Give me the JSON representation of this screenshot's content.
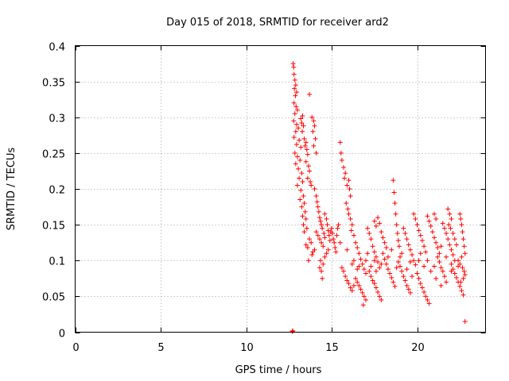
{
  "chart_data": {
    "type": "scatter",
    "title": "Day 015 of 2018, SRMTID for receiver ard2",
    "xlabel": "GPS time / hours",
    "ylabel": "SRMTID / TECUs",
    "xlim": [
      0,
      24
    ],
    "ylim": [
      0,
      0.4
    ],
    "xticks": [
      0,
      5,
      10,
      15,
      20
    ],
    "yticks": [
      0,
      0.05,
      0.1,
      0.15,
      0.2,
      0.25,
      0.3,
      0.35,
      0.4
    ],
    "xtick_labels": [
      "0",
      "5",
      "10",
      "15",
      "20"
    ],
    "ytick_labels": [
      "0",
      "0.05",
      "0.1",
      "0.15",
      "0.2",
      "0.25",
      "0.3",
      "0.35",
      "0.4"
    ],
    "grid": true,
    "marker": "+",
    "color": "#ff0000",
    "series": [
      {
        "name": "SRMTID",
        "points": [
          [
            12.7,
            0.001
          ],
          [
            12.73,
            0.002
          ],
          [
            12.75,
            0.375
          ],
          [
            12.78,
            0.37
          ],
          [
            12.8,
            0.36
          ],
          [
            12.85,
            0.352
          ],
          [
            12.9,
            0.345
          ],
          [
            12.82,
            0.34
          ],
          [
            12.95,
            0.335
          ],
          [
            12.88,
            0.33
          ],
          [
            12.8,
            0.32
          ],
          [
            12.92,
            0.315
          ],
          [
            13.0,
            0.31
          ],
          [
            12.85,
            0.305
          ],
          [
            12.78,
            0.295
          ],
          [
            12.95,
            0.29
          ],
          [
            13.05,
            0.285
          ],
          [
            12.9,
            0.28
          ],
          [
            12.8,
            0.272
          ],
          [
            13.1,
            0.268
          ],
          [
            12.95,
            0.262
          ],
          [
            13.2,
            0.258
          ],
          [
            12.85,
            0.25
          ],
          [
            13.0,
            0.245
          ],
          [
            13.15,
            0.24
          ],
          [
            12.9,
            0.235
          ],
          [
            13.05,
            0.228
          ],
          [
            13.25,
            0.222
          ],
          [
            13.1,
            0.215
          ],
          [
            13.3,
            0.21
          ],
          [
            13.0,
            0.205
          ],
          [
            13.2,
            0.198
          ],
          [
            13.35,
            0.19
          ],
          [
            13.15,
            0.185
          ],
          [
            13.4,
            0.18
          ],
          [
            13.25,
            0.175
          ],
          [
            13.45,
            0.168
          ],
          [
            13.3,
            0.162
          ],
          [
            13.5,
            0.158
          ],
          [
            13.35,
            0.15
          ],
          [
            13.55,
            0.145
          ],
          [
            13.4,
            0.14
          ],
          [
            13.2,
            0.298
          ],
          [
            13.25,
            0.292
          ],
          [
            13.3,
            0.302
          ],
          [
            13.35,
            0.288
          ],
          [
            13.28,
            0.28
          ],
          [
            13.4,
            0.27
          ],
          [
            13.45,
            0.26
          ],
          [
            13.5,
            0.265
          ],
          [
            13.55,
            0.255
          ],
          [
            13.6,
            0.248
          ],
          [
            13.5,
            0.238
          ],
          [
            13.65,
            0.232
          ],
          [
            13.7,
            0.225
          ],
          [
            13.6,
            0.215
          ],
          [
            13.75,
            0.21
          ],
          [
            13.8,
            0.205
          ],
          [
            13.7,
            0.332
          ],
          [
            13.85,
            0.3
          ],
          [
            13.95,
            0.295
          ],
          [
            14.0,
            0.288
          ],
          [
            13.9,
            0.28
          ],
          [
            14.05,
            0.27
          ],
          [
            13.95,
            0.26
          ],
          [
            14.1,
            0.25
          ],
          [
            13.5,
            0.122
          ],
          [
            13.6,
            0.118
          ],
          [
            13.7,
            0.13
          ],
          [
            13.8,
            0.125
          ],
          [
            13.9,
            0.112
          ],
          [
            13.65,
            0.1
          ],
          [
            13.85,
            0.108
          ],
          [
            14.0,
            0.115
          ],
          [
            14.0,
            0.2
          ],
          [
            14.1,
            0.19
          ],
          [
            14.15,
            0.182
          ],
          [
            14.2,
            0.175
          ],
          [
            14.25,
            0.168
          ],
          [
            14.3,
            0.16
          ],
          [
            14.35,
            0.155
          ],
          [
            14.4,
            0.15
          ],
          [
            14.1,
            0.14
          ],
          [
            14.2,
            0.135
          ],
          [
            14.3,
            0.13
          ],
          [
            14.4,
            0.125
          ],
          [
            14.5,
            0.12
          ],
          [
            14.45,
            0.145
          ],
          [
            14.55,
            0.138
          ],
          [
            14.6,
            0.132
          ],
          [
            14.3,
            0.09
          ],
          [
            14.4,
            0.085
          ],
          [
            14.45,
            0.075
          ],
          [
            14.5,
            0.095
          ],
          [
            14.35,
            0.1
          ],
          [
            14.6,
            0.105
          ],
          [
            14.7,
            0.11
          ],
          [
            14.8,
            0.115
          ],
          [
            14.6,
            0.165
          ],
          [
            14.7,
            0.158
          ],
          [
            14.75,
            0.15
          ],
          [
            14.8,
            0.142
          ],
          [
            14.85,
            0.135
          ],
          [
            14.9,
            0.128
          ],
          [
            14.95,
            0.14
          ],
          [
            15.0,
            0.145
          ],
          [
            15.05,
            0.138
          ],
          [
            15.1,
            0.13
          ],
          [
            15.15,
            0.125
          ],
          [
            15.2,
            0.118
          ],
          [
            15.25,
            0.112
          ],
          [
            15.3,
            0.135
          ],
          [
            15.35,
            0.145
          ],
          [
            15.4,
            0.15
          ],
          [
            15.5,
            0.265
          ],
          [
            15.55,
            0.25
          ],
          [
            15.6,
            0.24
          ],
          [
            15.7,
            0.23
          ],
          [
            15.8,
            0.222
          ],
          [
            15.75,
            0.215
          ],
          [
            15.9,
            0.205
          ],
          [
            16.0,
            0.212
          ],
          [
            16.05,
            0.2
          ],
          [
            16.1,
            0.19
          ],
          [
            15.85,
            0.18
          ],
          [
            15.95,
            0.172
          ],
          [
            16.0,
            0.165
          ],
          [
            16.1,
            0.158
          ],
          [
            16.2,
            0.15
          ],
          [
            16.15,
            0.142
          ],
          [
            15.6,
            0.09
          ],
          [
            15.7,
            0.085
          ],
          [
            15.8,
            0.078
          ],
          [
            15.9,
            0.072
          ],
          [
            16.0,
            0.068
          ],
          [
            16.1,
            0.062
          ],
          [
            16.2,
            0.058
          ],
          [
            16.3,
            0.065
          ],
          [
            16.3,
            0.135
          ],
          [
            16.4,
            0.125
          ],
          [
            16.5,
            0.118
          ],
          [
            16.6,
            0.11
          ],
          [
            16.7,
            0.102
          ],
          [
            16.8,
            0.095
          ],
          [
            16.9,
            0.088
          ],
          [
            17.0,
            0.082
          ],
          [
            16.4,
            0.075
          ],
          [
            16.5,
            0.07
          ],
          [
            16.6,
            0.065
          ],
          [
            16.7,
            0.06
          ],
          [
            16.8,
            0.055
          ],
          [
            16.9,
            0.05
          ],
          [
            17.0,
            0.045
          ],
          [
            16.85,
            0.038
          ],
          [
            17.1,
            0.145
          ],
          [
            17.2,
            0.138
          ],
          [
            17.3,
            0.13
          ],
          [
            17.4,
            0.12
          ],
          [
            17.5,
            0.112
          ],
          [
            17.6,
            0.105
          ],
          [
            17.7,
            0.098
          ],
          [
            17.8,
            0.09
          ],
          [
            17.2,
            0.085
          ],
          [
            17.3,
            0.078
          ],
          [
            17.4,
            0.072
          ],
          [
            17.5,
            0.068
          ],
          [
            17.6,
            0.062
          ],
          [
            17.7,
            0.056
          ],
          [
            17.8,
            0.05
          ],
          [
            17.9,
            0.045
          ],
          [
            17.5,
            0.155
          ],
          [
            17.6,
            0.148
          ],
          [
            17.7,
            0.16
          ],
          [
            17.8,
            0.152
          ],
          [
            17.9,
            0.14
          ],
          [
            18.0,
            0.132
          ],
          [
            18.1,
            0.125
          ],
          [
            18.2,
            0.118
          ],
          [
            18.0,
            0.11
          ],
          [
            18.1,
            0.102
          ],
          [
            18.2,
            0.095
          ],
          [
            18.3,
            0.088
          ],
          [
            18.4,
            0.082
          ],
          [
            18.5,
            0.076
          ],
          [
            18.6,
            0.07
          ],
          [
            18.7,
            0.064
          ],
          [
            18.6,
            0.212
          ],
          [
            18.65,
            0.195
          ],
          [
            18.7,
            0.18
          ],
          [
            18.75,
            0.165
          ],
          [
            18.8,
            0.15
          ],
          [
            18.85,
            0.138
          ],
          [
            18.9,
            0.128
          ],
          [
            18.95,
            0.12
          ],
          [
            18.9,
            0.098
          ],
          [
            19.0,
            0.092
          ],
          [
            19.1,
            0.085
          ],
          [
            19.2,
            0.078
          ],
          [
            19.3,
            0.072
          ],
          [
            19.4,
            0.065
          ],
          [
            19.5,
            0.06
          ],
          [
            19.6,
            0.055
          ],
          [
            19.2,
            0.145
          ],
          [
            19.3,
            0.138
          ],
          [
            19.4,
            0.13
          ],
          [
            19.5,
            0.122
          ],
          [
            19.6,
            0.115
          ],
          [
            19.7,
            0.108
          ],
          [
            19.8,
            0.1
          ],
          [
            19.9,
            0.094
          ],
          [
            19.8,
            0.165
          ],
          [
            19.9,
            0.158
          ],
          [
            20.0,
            0.15
          ],
          [
            20.1,
            0.142
          ],
          [
            20.2,
            0.135
          ],
          [
            20.3,
            0.128
          ],
          [
            20.4,
            0.12
          ],
          [
            20.5,
            0.112
          ],
          [
            20.0,
            0.082
          ],
          [
            20.1,
            0.075
          ],
          [
            20.2,
            0.068
          ],
          [
            20.3,
            0.062
          ],
          [
            20.4,
            0.056
          ],
          [
            20.5,
            0.05
          ],
          [
            20.6,
            0.045
          ],
          [
            20.7,
            0.04
          ],
          [
            20.6,
            0.162
          ],
          [
            20.7,
            0.155
          ],
          [
            20.8,
            0.148
          ],
          [
            20.9,
            0.14
          ],
          [
            21.0,
            0.132
          ],
          [
            21.1,
            0.125
          ],
          [
            21.2,
            0.118
          ],
          [
            21.3,
            0.11
          ],
          [
            21.0,
            0.165
          ],
          [
            21.1,
            0.158
          ],
          [
            21.2,
            0.105
          ],
          [
            21.3,
            0.098
          ],
          [
            21.4,
            0.09
          ],
          [
            21.5,
            0.085
          ],
          [
            21.6,
            0.078
          ],
          [
            21.7,
            0.07
          ],
          [
            21.5,
            0.152
          ],
          [
            21.6,
            0.145
          ],
          [
            21.7,
            0.138
          ],
          [
            21.8,
            0.13
          ],
          [
            21.9,
            0.122
          ],
          [
            22.0,
            0.115
          ],
          [
            22.1,
            0.108
          ],
          [
            22.2,
            0.1
          ],
          [
            21.8,
            0.172
          ],
          [
            21.9,
            0.165
          ],
          [
            22.0,
            0.158
          ],
          [
            21.85,
            0.15
          ],
          [
            21.95,
            0.145
          ],
          [
            22.1,
            0.138
          ],
          [
            22.2,
            0.13
          ],
          [
            22.3,
            0.122
          ],
          [
            22.0,
            0.095
          ],
          [
            22.1,
            0.088
          ],
          [
            22.2,
            0.082
          ],
          [
            22.3,
            0.076
          ],
          [
            22.4,
            0.07
          ],
          [
            22.5,
            0.064
          ],
          [
            22.6,
            0.058
          ],
          [
            22.7,
            0.052
          ],
          [
            22.5,
            0.165
          ],
          [
            22.55,
            0.158
          ],
          [
            22.6,
            0.15
          ],
          [
            22.65,
            0.14
          ],
          [
            22.7,
            0.13
          ],
          [
            22.75,
            0.12
          ],
          [
            22.8,
            0.11
          ],
          [
            22.6,
            0.105
          ],
          [
            22.4,
            0.1
          ],
          [
            22.5,
            0.095
          ],
          [
            22.65,
            0.09
          ],
          [
            22.75,
            0.085
          ],
          [
            22.8,
            0.08
          ],
          [
            22.7,
            0.075
          ],
          [
            22.55,
            0.07
          ],
          [
            22.8,
            0.015
          ],
          [
            16.2,
            0.095
          ],
          [
            16.5,
            0.088
          ],
          [
            17.0,
            0.1
          ],
          [
            17.3,
            0.092
          ],
          [
            17.6,
            0.085
          ],
          [
            18.3,
            0.105
          ],
          [
            18.8,
            0.09
          ],
          [
            19.1,
            0.11
          ],
          [
            19.4,
            0.088
          ],
          [
            19.7,
            0.078
          ],
          [
            20.1,
            0.1
          ],
          [
            20.4,
            0.092
          ],
          [
            20.8,
            0.085
          ],
          [
            21.1,
            0.075
          ],
          [
            21.4,
            0.065
          ],
          [
            21.7,
            0.105
          ],
          [
            16.3,
            0.1
          ],
          [
            16.6,
            0.092
          ],
          [
            17.1,
            0.11
          ],
          [
            17.5,
            0.1
          ],
          [
            17.9,
            0.095
          ],
          [
            18.5,
            0.115
          ],
          [
            19.0,
            0.105
          ],
          [
            19.6,
            0.098
          ],
          [
            20.2,
            0.11
          ],
          [
            20.6,
            0.1
          ],
          [
            21.0,
            0.092
          ],
          [
            21.4,
            0.12
          ],
          [
            22.0,
            0.085
          ],
          [
            22.4,
            0.092
          ],
          [
            15.9,
            0.115
          ],
          [
            15.5,
            0.125
          ]
        ]
      }
    ]
  }
}
